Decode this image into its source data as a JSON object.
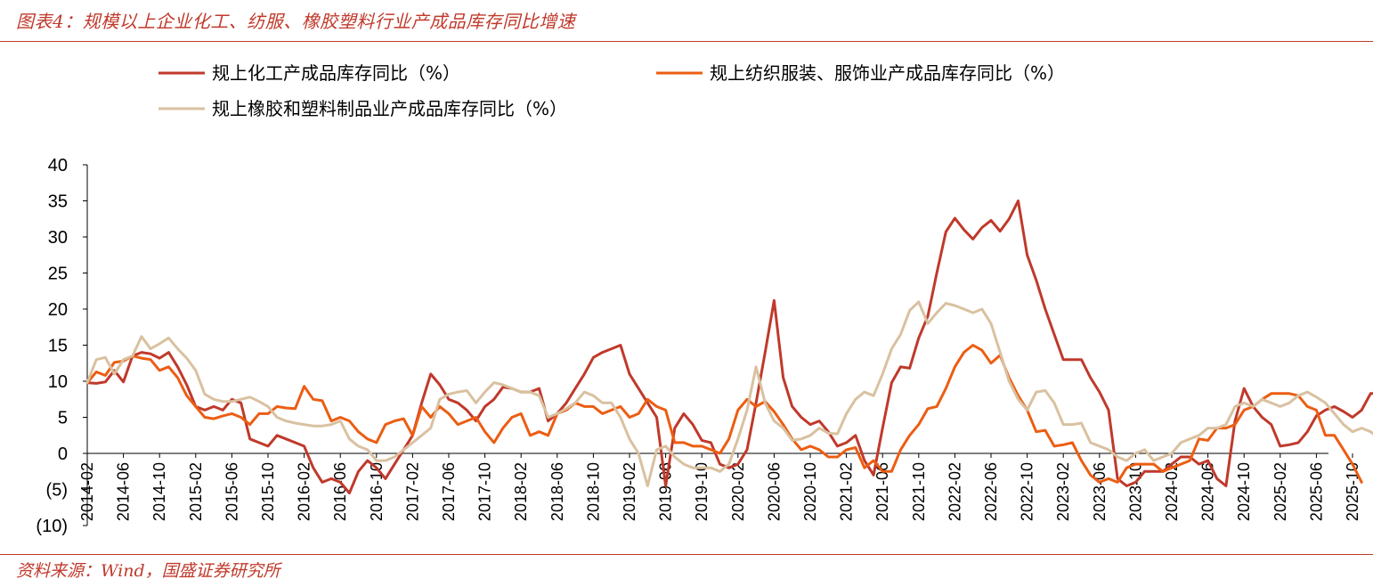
{
  "header": {
    "title": "图表4：规模以上企业化工、纺服、橡胶塑料行业产成品库存同比增速"
  },
  "footer": {
    "source": "资料来源：Wind，国盛证券研究所"
  },
  "colors": {
    "accent": "#c0392b"
  },
  "chart_data": {
    "type": "line",
    "title": "",
    "xlabel": "",
    "ylabel": "",
    "ylim": [
      -10,
      40
    ],
    "y_ticks": [
      40,
      35,
      30,
      25,
      20,
      15,
      10,
      5,
      0,
      -5,
      -10
    ],
    "y_tick_labels": [
      "40",
      "35",
      "30",
      "25",
      "20",
      "15",
      "10",
      "5",
      "0",
      "(5)",
      "(10)"
    ],
    "x_tick_labels": [
      "2014-02",
      "2014-06",
      "2014-10",
      "2015-02",
      "2015-06",
      "2015-10",
      "2016-02",
      "2016-06",
      "2016-10",
      "2017-02",
      "2017-06",
      "2017-10",
      "2018-02",
      "2018-06",
      "2018-10",
      "2019-02",
      "2019-06",
      "2019-10",
      "2020-02",
      "2020-06",
      "2020-10",
      "2021-02",
      "2021-06",
      "2021-10",
      "2022-02",
      "2022-06",
      "2022-10",
      "2023-02",
      "2023-06",
      "2023-10",
      "2024-02",
      "2024-06",
      "2024-10",
      "2025-02",
      "2025-06",
      "2025-10"
    ],
    "legend_position": "top",
    "x_start": "2014-02",
    "series": [
      {
        "name": "规上化工产成品库存同比（%）",
        "color": "#c0392b",
        "values": [
          9.8,
          9.7,
          9.9,
          11.5,
          9.9,
          13.5,
          14,
          13.8,
          13.2,
          14,
          12,
          9.5,
          6.5,
          6,
          6.5,
          6,
          7.5,
          7,
          2,
          1.5,
          1,
          2.5,
          2,
          1.5,
          1,
          -2,
          -4,
          -3.5,
          -4,
          -5.5,
          -2.5,
          -1,
          -2,
          -3.5,
          -1.5,
          0.5,
          2.5,
          7,
          11,
          9.5,
          7.5,
          7,
          6,
          4.5,
          6.5,
          7.5,
          9.2,
          9,
          8.5,
          8.5,
          9,
          4.5,
          5.5,
          7,
          9,
          11,
          13.3,
          14,
          14.5,
          15,
          11,
          9,
          7,
          5,
          -4.5,
          3.5,
          5.5,
          4,
          1.8,
          1.5,
          -1.5,
          -2,
          -1.5,
          0.5,
          7,
          14,
          21.2,
          10.5,
          6.5,
          5,
          4,
          4.5,
          3,
          1,
          1.5,
          2.5,
          -1,
          -3,
          3.5,
          9.8,
          12,
          11.8,
          16,
          19,
          25,
          30.7,
          32.6,
          31,
          29.7,
          31.3,
          32.3,
          30.8,
          32.5,
          35,
          27.5,
          24,
          20,
          16.5,
          13,
          13,
          13,
          10.5,
          8.5,
          6,
          -3.5,
          -4.5,
          -4,
          -2.5,
          -2.5,
          -2.5,
          -1.5,
          -0.5,
          -0.5,
          -1.5,
          -1,
          -3.5,
          -4.5,
          4.5,
          9,
          6.5,
          5,
          4,
          1,
          1.2,
          1.5,
          3,
          5.2,
          6,
          6.5,
          5.8,
          5,
          6,
          8.3,
          8.3
        ]
      },
      {
        "name": "规上纺织服装、服饰业产成品库存同比（%）",
        "color": "#ec5d12",
        "values": [
          9.8,
          11.3,
          10.8,
          12.6,
          12.8,
          13.5,
          13.2,
          13,
          11.5,
          12,
          10.5,
          8,
          6.5,
          5,
          4.8,
          5.2,
          5.5,
          5,
          4,
          5.5,
          5.5,
          6.5,
          6.3,
          6.2,
          9.3,
          7.5,
          7.3,
          4.5,
          5,
          4.5,
          3,
          2,
          1.5,
          4,
          4.5,
          4.8,
          2.5,
          6.5,
          5,
          6.5,
          5.5,
          4,
          4.5,
          5,
          3,
          1.5,
          3.5,
          5,
          5.5,
          2.5,
          3,
          2.5,
          5.5,
          6,
          7,
          6.5,
          6.5,
          5.5,
          6,
          6.5,
          5,
          5.5,
          7.5,
          6.5,
          6,
          1.5,
          1.5,
          1,
          1,
          0.5,
          0,
          2,
          6,
          7.5,
          6.5,
          7.2,
          5.8,
          4,
          2,
          0.5,
          1,
          0.5,
          -0.5,
          -0.5,
          0.5,
          0.8,
          -2,
          -1,
          -2.5,
          -2.5,
          0.5,
          2.5,
          4,
          6.2,
          6.5,
          9,
          12,
          14,
          15,
          14.3,
          12.5,
          13.6,
          10.5,
          8,
          6,
          3,
          3.2,
          1,
          1.2,
          1.5,
          -1,
          -3,
          -4,
          -3.5,
          -4,
          -2,
          -1.5,
          -1.5,
          -1.5,
          -2.5,
          -2,
          -1.5,
          -1,
          2,
          1.8,
          3.5,
          3.5,
          4,
          6,
          6.5,
          7.5,
          8.3,
          8.3,
          8.3,
          8,
          6.5,
          6,
          2.5,
          2.5,
          0.5,
          -1.5,
          -4
        ]
      },
      {
        "name": "规上橡胶和塑料制品业产成品库存同比（%）",
        "color": "#d9c1a0",
        "values": [
          9.8,
          13,
          13.3,
          11,
          13,
          13.5,
          16.2,
          14.5,
          15.2,
          16,
          14.5,
          13.2,
          11.5,
          8.2,
          7.5,
          7.2,
          7.2,
          7.5,
          7.8,
          7.2,
          6.5,
          5,
          4.5,
          4.2,
          4,
          3.8,
          3.8,
          4,
          4.5,
          2,
          1,
          0.5,
          -1,
          -1,
          -0.5,
          0.5,
          1.5,
          2.5,
          3.5,
          7.5,
          8.2,
          8.5,
          8.7,
          7,
          8.5,
          9.8,
          9.5,
          9,
          8.5,
          8.5,
          8,
          5,
          5.5,
          6.2,
          7,
          8.5,
          8,
          7,
          7,
          5,
          2,
          0,
          -4.5,
          0.5,
          1,
          -0.5,
          -1.5,
          -2,
          -2,
          -2,
          -2.5,
          -1.5,
          2,
          6,
          12,
          7,
          4.5,
          3.5,
          1.8,
          2,
          2.5,
          3.5,
          2.8,
          2.7,
          5.5,
          7.5,
          8.5,
          8,
          11,
          14.5,
          16.5,
          19.8,
          21,
          18,
          19.5,
          20.8,
          20.5,
          20,
          19.5,
          20,
          18,
          14,
          10,
          7.5,
          6,
          8.5,
          8.7,
          7,
          4,
          4,
          4.2,
          1.5,
          1,
          0.5,
          -0.5,
          -1,
          0,
          0.5,
          -1,
          -0.5,
          0,
          1.5,
          2,
          2.5,
          3.5,
          3.5,
          4,
          6.5,
          7,
          6.5,
          7.5,
          7,
          6.5,
          7,
          8,
          8.5,
          7.8,
          7,
          5.5,
          4,
          3,
          3.5,
          3,
          2
        ]
      }
    ]
  }
}
